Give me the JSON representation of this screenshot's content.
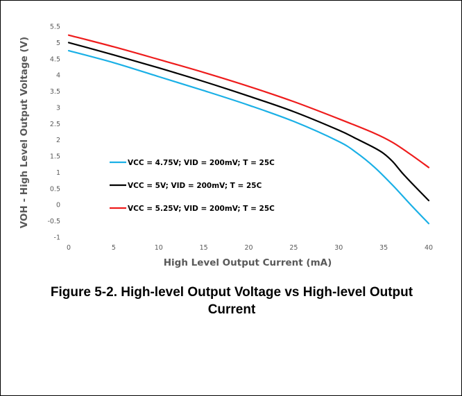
{
  "chart_data": {
    "type": "line",
    "xlabel": "High Level Output Current (mA)",
    "ylabel": "VOH - High Level Output Voltage (V)",
    "xlim": [
      0,
      40
    ],
    "ylim": [
      -1,
      5.5
    ],
    "x_ticks": [
      0,
      5,
      10,
      15,
      20,
      25,
      30,
      35,
      40
    ],
    "y_ticks": [
      -1,
      -0.5,
      0,
      0.5,
      1,
      1.5,
      2,
      2.5,
      3,
      3.5,
      4,
      4.5,
      5,
      5.5
    ],
    "grid": false,
    "legend_position": "lower-left",
    "series": [
      {
        "name": "VCC = 4.75V; VID = 200mV; T = 25C",
        "color": "#1ab0e6",
        "x": [
          0,
          5,
          10,
          15,
          20,
          25,
          30,
          32,
          34,
          36,
          38,
          40
        ],
        "y": [
          4.75,
          4.38,
          3.95,
          3.52,
          3.07,
          2.57,
          1.95,
          1.6,
          1.15,
          0.6,
          0.0,
          -0.58
        ]
      },
      {
        "name": "VCC = 5V; VID = 200mV; T = 25C",
        "color": "#000000",
        "x": [
          0,
          5,
          10,
          15,
          20,
          25,
          30,
          32,
          34,
          35,
          36,
          37,
          38,
          40
        ],
        "y": [
          5.0,
          4.62,
          4.22,
          3.8,
          3.35,
          2.87,
          2.3,
          2.03,
          1.75,
          1.58,
          1.33,
          1.0,
          0.7,
          0.13
        ]
      },
      {
        "name": "VCC = 5.25V; VID = 200mV; T = 25C",
        "color": "#ee1c1c",
        "x": [
          0,
          5,
          10,
          15,
          20,
          25,
          30,
          34,
          36,
          38,
          40
        ],
        "y": [
          5.23,
          4.87,
          4.48,
          4.08,
          3.65,
          3.18,
          2.65,
          2.2,
          1.92,
          1.55,
          1.15
        ]
      }
    ]
  },
  "caption": {
    "line1": "Figure 5-2. High-level Output Voltage vs High-level Output",
    "line2": "Current"
  }
}
